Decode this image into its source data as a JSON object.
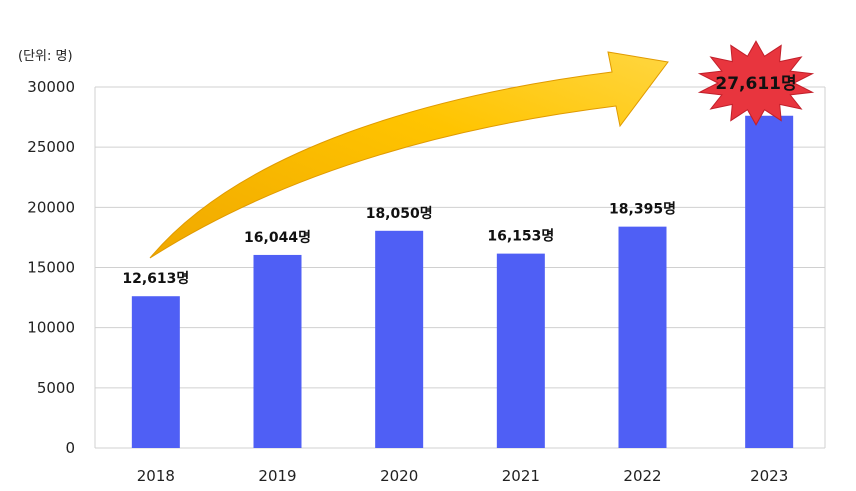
{
  "chart_data": {
    "type": "bar",
    "unit_label": "(단위: 명)",
    "categories": [
      "2018",
      "2019",
      "2020",
      "2021",
      "2022",
      "2023"
    ],
    "values": [
      12613,
      16044,
      18050,
      16153,
      18395,
      27611
    ],
    "data_labels": [
      "12,613명",
      "16,044명",
      "18,050명",
      "16,153명",
      "18,395명",
      "27,611명"
    ],
    "highlight_label": "27,611명",
    "ylim": [
      0,
      30000
    ],
    "yticks": [
      "0",
      "5000",
      "10000",
      "15000",
      "20000",
      "25000",
      "30000"
    ],
    "grid": true,
    "legend": "none",
    "colors": {
      "bar": "#4f5ff5",
      "arrow": "#f6b800",
      "burst": "#e8353e",
      "grid": "#d0d0d0"
    }
  }
}
